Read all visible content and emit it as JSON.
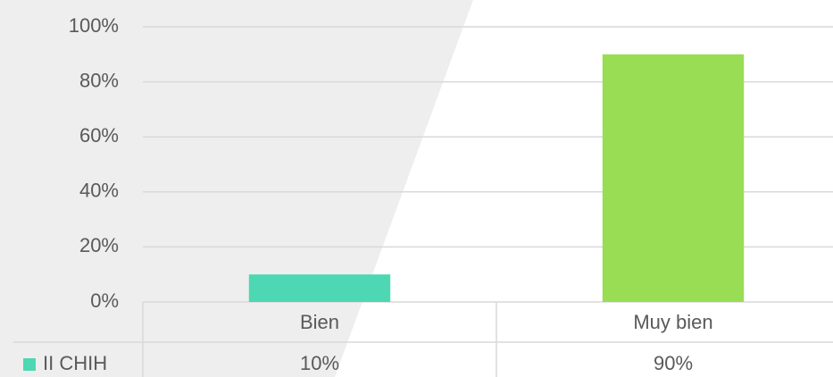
{
  "chart_data": {
    "type": "bar",
    "categories": [
      "Bien",
      "Muy bien"
    ],
    "series": [
      {
        "name": "II CHIH",
        "colors": [
          "#4dd8b3",
          "#99dd55"
        ],
        "values": [
          10,
          90
        ],
        "value_labels": [
          "10%",
          "90%"
        ]
      }
    ],
    "ylim": [
      0,
      100
    ],
    "yticks": [
      {
        "value": 0,
        "label": "0%"
      },
      {
        "value": 20,
        "label": "20%"
      },
      {
        "value": 40,
        "label": "40%"
      },
      {
        "value": 60,
        "label": "60%"
      },
      {
        "value": 80,
        "label": "80%"
      },
      {
        "value": 100,
        "label": "100%"
      }
    ],
    "grid": true
  }
}
